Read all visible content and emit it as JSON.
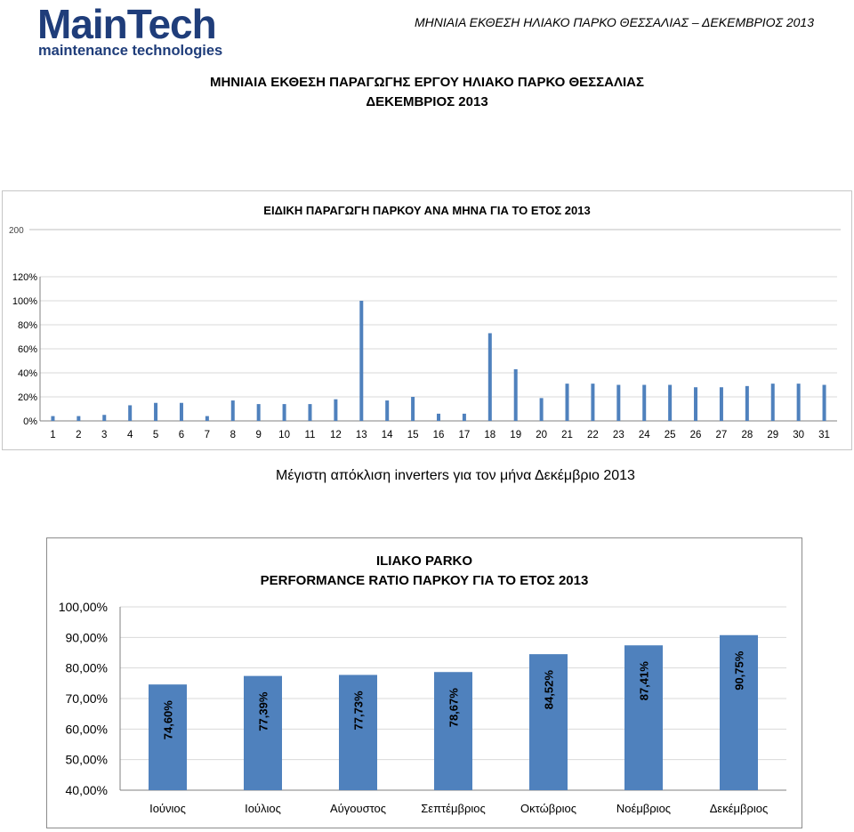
{
  "logo": {
    "name": "MainTech",
    "tagline": "maintenance technologies"
  },
  "header_right": "ΜΗΝΙΑΙΑ ΕΚΘΕΣΗ ΗΛΙΑΚΟ ΠΑΡΚΟ ΘΕΣΣΑΛΙΑΣ – ΔΕΚΕΜΒΡΙΟΣ 2013",
  "report_title_line1": "ΜΗΝΙΑΙΑ ΕΚΘΕΣΗ ΠΑΡΑΓΩΓΗΣ ΕΡΓΟΥ ΗΛΙΑΚΟ ΠΑΡΚΟ ΘΕΣΣΑΛΙΑΣ",
  "report_title_line2": "ΔΕΚΕΜΒΡΙΟΣ 2013",
  "caption": "Μέγιστη απόκλιση inverters για τον μήνα Δεκέμβριο 2013",
  "colors": {
    "bar": "#4f81bd",
    "logo": "#1f3d7a",
    "grid": "#d9d9d9"
  },
  "chart_data": [
    {
      "type": "bar",
      "title": "ΕΙΔΙΚΗ ΠΑΡΑΓΩΓΗ ΠΑΡΚΟΥ ΑΝΑ ΜΗΝΑ ΓΙΑ ΤΟ ΕΤΟΣ 2013",
      "overlapped_axis_label": "200",
      "categories": [
        "1",
        "2",
        "3",
        "4",
        "5",
        "6",
        "7",
        "8",
        "9",
        "10",
        "11",
        "12",
        "13",
        "14",
        "15",
        "16",
        "17",
        "18",
        "19",
        "20",
        "21",
        "22",
        "23",
        "24",
        "25",
        "26",
        "27",
        "28",
        "29",
        "30",
        "31"
      ],
      "values": [
        4,
        4,
        5,
        13,
        15,
        15,
        4,
        17,
        14,
        14,
        14,
        18,
        100,
        17,
        20,
        6,
        6,
        73,
        43,
        19,
        31,
        31,
        30,
        30,
        30,
        28,
        28,
        29,
        31,
        31,
        30
      ],
      "ylim": [
        0,
        120
      ],
      "yticks": [
        "0%",
        "20%",
        "40%",
        "60%",
        "80%",
        "100%",
        "120%"
      ],
      "grid": true
    },
    {
      "type": "bar",
      "title": "ILIAKO PARKO",
      "subtitle": "PERFORMANCE RATIO ΠΑΡΚΟΥ ΓΙΑ ΤΟ ΕΤΟΣ 2013",
      "categories": [
        "Ιούνιος",
        "Ιούλιος",
        "Αύγουστος",
        "Σεπτέμβριος",
        "Οκτώβριος",
        "Νοέμβριος",
        "Δεκέμβριος"
      ],
      "values": [
        74.6,
        77.39,
        77.73,
        78.67,
        84.52,
        87.41,
        90.75
      ],
      "value_labels": [
        "74,60%",
        "77,39%",
        "77,73%",
        "78,67%",
        "84,52%",
        "87,41%",
        "90,75%"
      ],
      "ylim": [
        40,
        100
      ],
      "yticks": [
        "40,00%",
        "50,00%",
        "60,00%",
        "70,00%",
        "80,00%",
        "90,00%",
        "100,00%"
      ],
      "grid": true
    }
  ]
}
